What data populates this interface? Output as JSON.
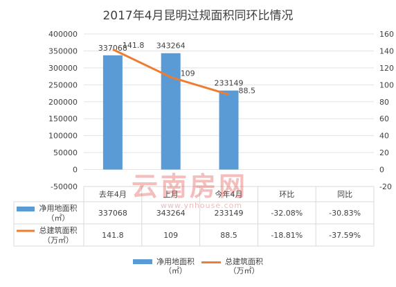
{
  "chart_data": {
    "type": "bar+line",
    "title": "2017年4月昆明过规面积同环比情况",
    "categories": [
      "去年4月",
      "上月",
      "今年4月",
      "环比",
      "同比"
    ],
    "series": [
      {
        "name": "净用地面积（㎡）",
        "type": "bar",
        "axis": "left",
        "color": "#5B9BD5",
        "values": [
          337068,
          343264,
          233149,
          null,
          null
        ],
        "labels": [
          "337068",
          "343264",
          "233149",
          "-32.08%",
          "-30.83%"
        ]
      },
      {
        "name": "总建筑面积（万㎡）",
        "type": "line",
        "axis": "right",
        "color": "#ED7D31",
        "values": [
          141.8,
          109,
          88.5,
          null,
          null
        ],
        "labels": [
          "141.8",
          "109",
          "88.5",
          "-18.81%",
          "-37.59%"
        ]
      }
    ],
    "y_left": {
      "min": -50000,
      "max": 400000,
      "ticks": [
        -50000,
        0,
        50000,
        100000,
        150000,
        200000,
        250000,
        300000,
        350000,
        400000
      ]
    },
    "y_right": {
      "min": -20,
      "max": 160,
      "ticks": [
        -20,
        0,
        20,
        40,
        60,
        80,
        100,
        120,
        140,
        160
      ]
    },
    "legend_position": "bottom",
    "data_table": true
  },
  "table_rows": [
    {
      "label_line1": "净用地面积",
      "label_line2": "（㎡）"
    },
    {
      "label_line1": "总建筑面积",
      "label_line2": "（万㎡）"
    }
  ],
  "legend": [
    {
      "line1": "净用地面积",
      "line2": "（㎡）"
    },
    {
      "line1": "总建筑面积",
      "line2": "（万㎡）"
    }
  ],
  "watermark": {
    "text": "云南房网",
    "url": "www.ynhouse.com"
  }
}
